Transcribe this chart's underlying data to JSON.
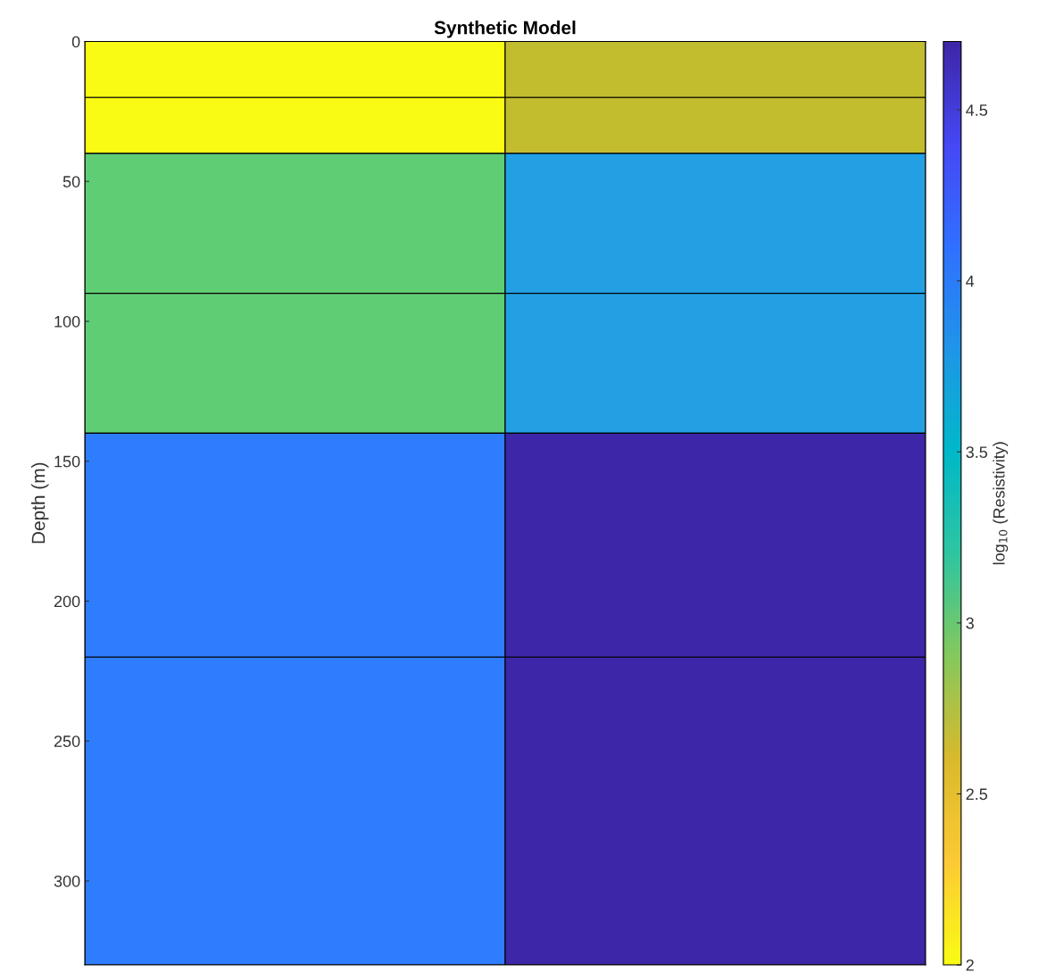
{
  "chart_data": {
    "type": "bar",
    "stacked": true,
    "title": "Synthetic Model",
    "ylabel": "Depth (m)",
    "clabel": "log$_{10}$ (Resistivity)",
    "categories": [
      null,
      null
    ],
    "series": [
      {
        "values": [
          20,
          20
        ],
        "colors": [
          "#f9fb15",
          "#c2bd2f"
        ]
      },
      {
        "values": [
          20,
          20
        ],
        "colors": [
          "#f9fb15",
          "#c2bd2f"
        ]
      },
      {
        "values": [
          50,
          50
        ],
        "colors": [
          "#5fcd74",
          "#23a0e4"
        ]
      },
      {
        "values": [
          50,
          50
        ],
        "colors": [
          "#5fcd74",
          "#23a0e4"
        ]
      },
      {
        "values": [
          80,
          80
        ],
        "colors": [
          "#2f7dff",
          "#3e26a8"
        ]
      },
      {
        "values": [
          110,
          110
        ],
        "colors": [
          "#2f7dff",
          "#3e26a8"
        ]
      }
    ],
    "colors": [
      "#f9fb15",
      "#fcc934",
      "#d9b92c",
      "#85c85c",
      "#2fc5a0",
      "#00b8c8",
      "#1f95e8",
      "#3070ff",
      "#4548f5",
      "#3e26a8"
    ],
    "clim": [
      2,
      4.7
    ],
    "cticks": [
      2,
      2.5,
      3,
      3.5,
      4,
      4.5
    ],
    "ylim": [
      330,
      0
    ],
    "yticks": [
      0,
      50,
      100,
      150,
      200,
      250,
      300
    ],
    "tick_labels": "y"
  }
}
